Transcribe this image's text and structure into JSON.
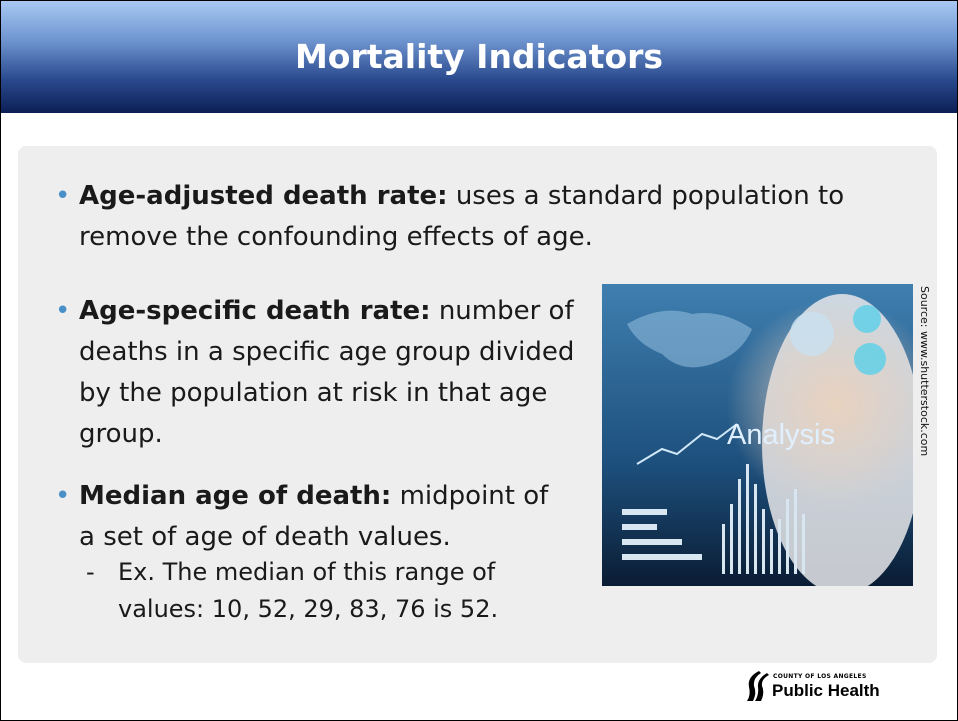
{
  "title": "Mortality Indicators",
  "bullets": [
    {
      "term": "Age-adjusted death rate:",
      "text": "uses a standard population to remove the confounding effects of age."
    },
    {
      "term": "Age-specific death rate:",
      "text": "number of deaths in a specific age group divided by the population at risk in that age group."
    },
    {
      "term": "Median age of death:",
      "text": "midpoint of a set of age of death values.",
      "sub": "Ex. The median of this range of values: 10, 52, 29, 83, 76 is 52."
    }
  ],
  "image": {
    "caption": "Analysis",
    "source": "Source: www.shutterstock.com"
  },
  "logo": {
    "line1": "County of Los Angeles",
    "line2": "Public Health"
  }
}
